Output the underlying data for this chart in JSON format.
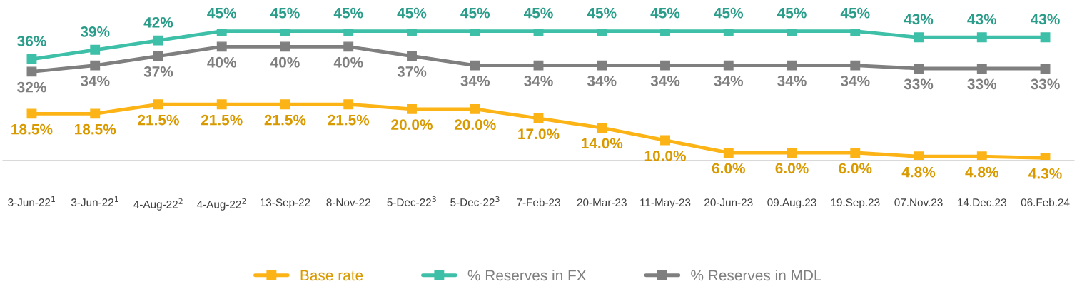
{
  "chart_data": {
    "type": "line",
    "categories": [
      "3-Jun-22$^{1}$",
      "3-Jun-22$^{1}$",
      "4-Aug-22$^{2}$",
      "4-Aug-22$^{2}$",
      "13-Sep-22",
      "8-Nov-22",
      "5-Dec-22$^{3}$",
      "5-Dec-22$^{3}$",
      "7-Feb-23",
      "20-Mar-23",
      "11-May-23",
      "20-Jun-23",
      "09.Aug.23",
      "19.Sep.23",
      "07.Nov.23",
      "14.Dec.23",
      "06.Feb.24"
    ],
    "series": [
      {
        "name": "Base rate",
        "color": "#fbb316",
        "values": [
          18.5,
          18.5,
          21.5,
          21.5,
          21.5,
          21.5,
          20.0,
          20.0,
          17.0,
          14.0,
          10.0,
          6.0,
          6.0,
          6.0,
          4.8,
          4.8,
          4.3
        ],
        "value_labels": [
          "18.5%",
          "18.5%",
          "21.5%",
          "21.5%",
          "21.5%",
          "21.5%",
          "20.0%",
          "20.0%",
          "17.0%",
          "14.0%",
          "10.0%",
          "6.0%",
          "6.0%",
          "6.0%",
          "4.8%",
          "4.8%",
          "4.3%"
        ]
      },
      {
        "name": "% Reserves in FX",
        "color": "#3dbfa8",
        "values": [
          36,
          39,
          42,
          45,
          45,
          45,
          45,
          45,
          45,
          45,
          45,
          45,
          45,
          45,
          43,
          43,
          43
        ],
        "value_labels": [
          "36%",
          "39%",
          "42%",
          "45%",
          "45%",
          "45%",
          "45%",
          "45%",
          "45%",
          "45%",
          "45%",
          "45%",
          "45%",
          "45%",
          "43%",
          "43%",
          "43%"
        ]
      },
      {
        "name": "% Reserves in MDL",
        "color": "#7f7f7f",
        "values": [
          32,
          34,
          37,
          40,
          40,
          40,
          37,
          34,
          34,
          34,
          34,
          34,
          34,
          34,
          33,
          33,
          33
        ],
        "value_labels": [
          "32%",
          "34%",
          "37%",
          "40%",
          "40%",
          "40%",
          "37%",
          "34%",
          "34%",
          "34%",
          "34%",
          "34%",
          "34%",
          "34%",
          "33%",
          "33%",
          "33%"
        ]
      }
    ],
    "tick_labels": "x",
    "marker": "square",
    "legend": "bottom",
    "grid": false
  }
}
